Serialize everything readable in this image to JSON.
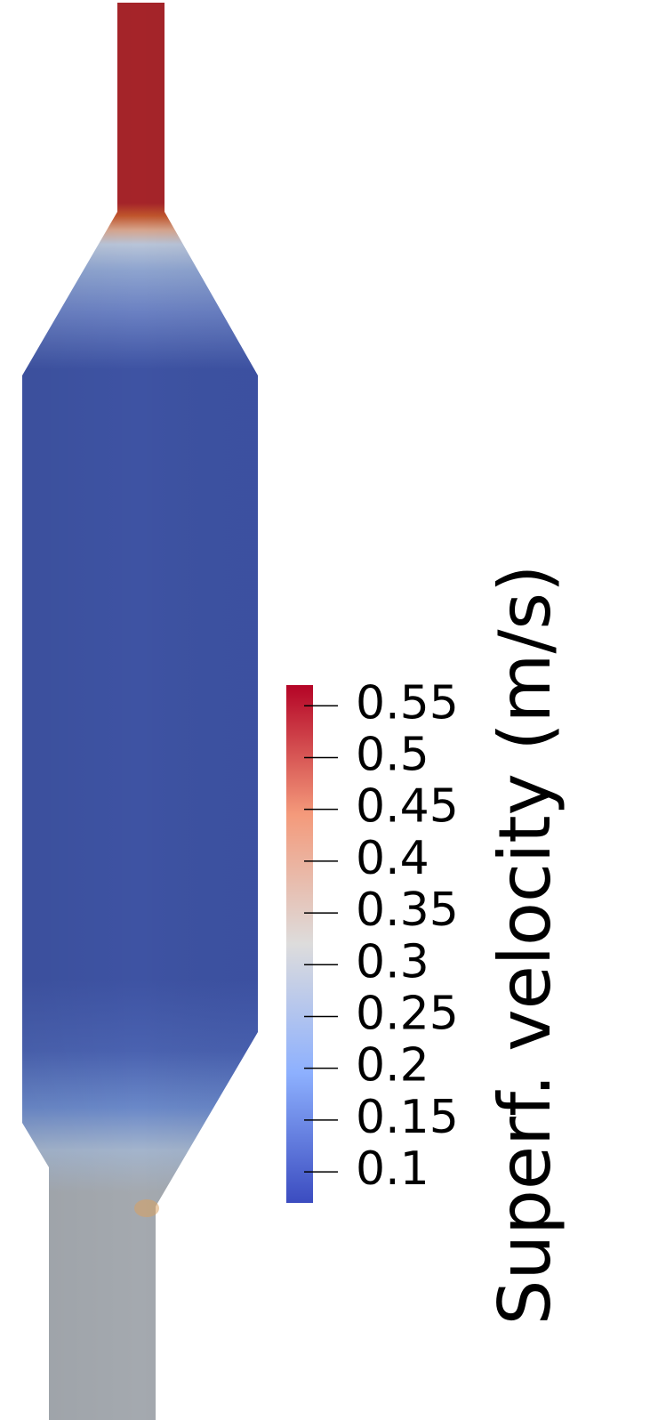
{
  "colorbar": {
    "title": "Superf. velocity (m/s)",
    "min": 0.07,
    "max": 0.57,
    "ticks": [
      {
        "value": 0.55,
        "label": "0.55"
      },
      {
        "value": 0.5,
        "label": "0.5"
      },
      {
        "value": 0.45,
        "label": "0.45"
      },
      {
        "value": 0.4,
        "label": "0.4"
      },
      {
        "value": 0.35,
        "label": "0.35"
      },
      {
        "value": 0.3,
        "label": "0.3"
      },
      {
        "value": 0.25,
        "label": "0.25"
      },
      {
        "value": 0.2,
        "label": "0.2"
      },
      {
        "value": 0.15,
        "label": "0.15"
      },
      {
        "value": 0.1,
        "label": "0.1"
      }
    ],
    "colormap": [
      "#3b4cc0",
      "#8db0fe",
      "#dddcdc",
      "#f49a7b",
      "#b40426"
    ]
  },
  "regions": {
    "outlet_color": "#a52429",
    "bed_color": "#3e53a3",
    "inlet_color": "#a4a9af"
  }
}
